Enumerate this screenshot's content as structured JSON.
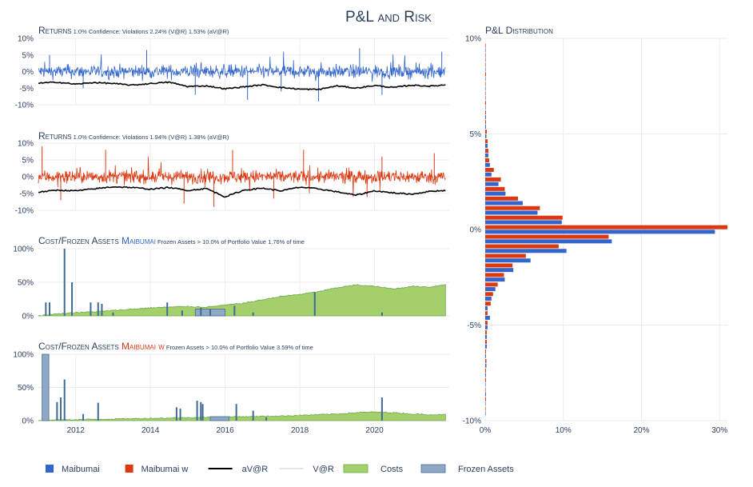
{
  "title": "P&L and Risk",
  "colors": {
    "blue": "#3366cc",
    "red": "#dc3912",
    "black": "#000000",
    "var_line": "#cccccc",
    "costs_fill": "#a5cf6b",
    "costs_line": "#6aa84f",
    "frozen_fill": "#8fa9c4",
    "frozen_line": "#3f6a96",
    "grid": "#ebebeb"
  },
  "chart_data": [
    {
      "id": "returns1",
      "type": "line",
      "title_main": "Returns",
      "title_sub": "1.0% Confidence: Violations 2.24% (V@R) 1.53% (aV@R)",
      "series_color": "blue",
      "ylim": [
        -10,
        10
      ],
      "yticks": [
        "10%",
        "5%",
        "0%",
        "-5%",
        "-10%"
      ],
      "ytick_values": [
        10,
        5,
        0,
        -5,
        -10
      ],
      "avar_points": [
        [
          2011,
          -3.5
        ],
        [
          2011.5,
          -3.2
        ],
        [
          2012,
          -3.8
        ],
        [
          2012.5,
          -3.3
        ],
        [
          2013,
          -3.6
        ],
        [
          2013.5,
          -4.1
        ],
        [
          2014,
          -3.6
        ],
        [
          2014.5,
          -3.2
        ],
        [
          2015,
          -4.5
        ],
        [
          2015.5,
          -4.3
        ],
        [
          2016,
          -5.2
        ],
        [
          2016.5,
          -4.6
        ],
        [
          2017,
          -4.0
        ],
        [
          2017.5,
          -4.8
        ],
        [
          2018,
          -5.3
        ],
        [
          2018.5,
          -5.4
        ],
        [
          2019,
          -4.3
        ],
        [
          2019.5,
          -5.0
        ],
        [
          2020,
          -4.2
        ],
        [
          2020.5,
          -4.8
        ],
        [
          2021,
          -4.1
        ],
        [
          2021.5,
          -4.4
        ],
        [
          2021.9,
          -4.0
        ]
      ],
      "spikes": [
        [
          2011.3,
          5
        ],
        [
          2012.2,
          -5
        ],
        [
          2013.9,
          6.5
        ],
        [
          2015.2,
          -7
        ],
        [
          2016.6,
          -8.5
        ],
        [
          2017.5,
          -6
        ],
        [
          2018.5,
          -9
        ],
        [
          2019.6,
          7
        ],
        [
          2020.2,
          -7
        ],
        [
          2021.8,
          6
        ]
      ]
    },
    {
      "id": "returns2",
      "type": "line",
      "title_main": "Returns",
      "title_sub": "1.0% Confidence: Violations 1.94% (V@R) 1.38% (aV@R)",
      "series_color": "red",
      "ylim": [
        -10,
        10
      ],
      "yticks": [
        "10%",
        "5%",
        "0%",
        "-5%",
        "-10%"
      ],
      "ytick_values": [
        10,
        5,
        0,
        -5,
        -10
      ],
      "avar_points": [
        [
          2011,
          -4.6
        ],
        [
          2011.5,
          -4.0
        ],
        [
          2012,
          -4.2
        ],
        [
          2012.5,
          -3.6
        ],
        [
          2013,
          -3.0
        ],
        [
          2013.5,
          -3.2
        ],
        [
          2014,
          -3.7
        ],
        [
          2014.5,
          -3.2
        ],
        [
          2015,
          -4.1
        ],
        [
          2015.5,
          -3.5
        ],
        [
          2016,
          -6.0
        ],
        [
          2016.5,
          -4.0
        ],
        [
          2017,
          -3.4
        ],
        [
          2017.5,
          -4.2
        ],
        [
          2018,
          -3.1
        ],
        [
          2018.5,
          -3.6
        ],
        [
          2019,
          -4.5
        ],
        [
          2019.5,
          -5.5
        ],
        [
          2020,
          -4.2
        ],
        [
          2020.5,
          -4.8
        ],
        [
          2021,
          -5.2
        ],
        [
          2021.5,
          -4.3
        ],
        [
          2021.9,
          -4.1
        ]
      ],
      "spikes": [
        [
          2011.1,
          9
        ],
        [
          2011.6,
          -7
        ],
        [
          2012.8,
          8
        ],
        [
          2014.9,
          -8
        ],
        [
          2015.7,
          -9
        ],
        [
          2016.2,
          8
        ],
        [
          2017.3,
          -6.5
        ],
        [
          2018.1,
          8
        ],
        [
          2019.8,
          -6
        ],
        [
          2020.2,
          6
        ],
        [
          2021.6,
          7
        ]
      ]
    },
    {
      "id": "cost1",
      "type": "area",
      "title_main": "Cost/Frozen Assets",
      "title_name": "Maibumai",
      "name_color": "blue",
      "title_sub": "Frozen Assets > 10.0% of Portfolio Value 1.76% of time",
      "ylim": [
        0,
        100
      ],
      "yticks": [
        "100%",
        "50%",
        "0%"
      ],
      "ytick_values": [
        100,
        50,
        0
      ],
      "costs": [
        [
          2011,
          0
        ],
        [
          2011.5,
          3
        ],
        [
          2012,
          5
        ],
        [
          2012.5,
          6
        ],
        [
          2013,
          8
        ],
        [
          2013.5,
          10
        ],
        [
          2014,
          12
        ],
        [
          2014.5,
          13
        ],
        [
          2015,
          14
        ],
        [
          2015.5,
          13
        ],
        [
          2016,
          16
        ],
        [
          2016.5,
          19
        ],
        [
          2017,
          24
        ],
        [
          2017.5,
          29
        ],
        [
          2018,
          32
        ],
        [
          2018.5,
          36
        ],
        [
          2019,
          42
        ],
        [
          2019.5,
          46
        ],
        [
          2020,
          44
        ],
        [
          2020.5,
          40
        ],
        [
          2021,
          44
        ],
        [
          2021.5,
          43
        ],
        [
          2021.9,
          47
        ]
      ],
      "frozen_bars": [
        [
          2011.2,
          20
        ],
        [
          2011.3,
          20
        ],
        [
          2011.7,
          100
        ],
        [
          2011.9,
          50
        ],
        [
          2012.4,
          20
        ],
        [
          2012.6,
          20
        ],
        [
          2012.7,
          18
        ],
        [
          2013.0,
          5
        ],
        [
          2014.45,
          20
        ],
        [
          2014.85,
          8
        ],
        [
          2015.35,
          12
        ],
        [
          2015.6,
          10
        ],
        [
          2016.25,
          15
        ],
        [
          2016.75,
          5
        ],
        [
          2018.4,
          35
        ],
        [
          2020.2,
          5
        ]
      ],
      "frozen_block": [
        2015.2,
        2016.0,
        10
      ]
    },
    {
      "id": "cost2",
      "type": "area",
      "title_main": "Cost/Frozen Assets",
      "title_name": "Maibumai w",
      "name_color": "red",
      "title_sub": "Frozen Assets > 10.0% of Portfolio Value 3.59% of time",
      "ylim": [
        0,
        100
      ],
      "yticks": [
        "100%",
        "50%",
        "0%"
      ],
      "ytick_values": [
        100,
        50,
        0
      ],
      "costs": [
        [
          2011,
          0
        ],
        [
          2011.5,
          1
        ],
        [
          2012,
          1.5
        ],
        [
          2012.5,
          2
        ],
        [
          2013,
          2.5
        ],
        [
          2013.5,
          3
        ],
        [
          2014,
          3.5
        ],
        [
          2014.5,
          4
        ],
        [
          2015,
          4.5
        ],
        [
          2015.5,
          5
        ],
        [
          2016,
          5.5
        ],
        [
          2016.5,
          6
        ],
        [
          2017,
          6.5
        ],
        [
          2017.5,
          7
        ],
        [
          2018,
          8
        ],
        [
          2018.5,
          9
        ],
        [
          2019,
          10
        ],
        [
          2019.5,
          12
        ],
        [
          2020,
          13
        ],
        [
          2020.5,
          12
        ],
        [
          2021,
          10
        ],
        [
          2021.5,
          9
        ],
        [
          2021.9,
          9
        ]
      ],
      "frozen_bars": [
        [
          2011.5,
          28
        ],
        [
          2011.6,
          35
        ],
        [
          2011.7,
          62
        ],
        [
          2012.2,
          10
        ],
        [
          2012.6,
          27
        ],
        [
          2014.7,
          20
        ],
        [
          2014.8,
          18
        ],
        [
          2015.25,
          30
        ],
        [
          2015.35,
          28
        ],
        [
          2015.4,
          25
        ],
        [
          2016.3,
          25
        ],
        [
          2016.75,
          15
        ],
        [
          2017.1,
          5
        ],
        [
          2020.2,
          35
        ]
      ],
      "frozen_block": [
        2011.1,
        2011.28,
        100
      ],
      "frozen_block2": [
        2015.6,
        2016.1,
        6
      ]
    }
  ],
  "x_axis": {
    "range": [
      2011,
      2022
    ],
    "ticks": [
      "2012",
      "2014",
      "2016",
      "2018",
      "2020"
    ],
    "tick_values": [
      2012,
      2014,
      2016,
      2018,
      2020
    ]
  },
  "distribution": {
    "title": "P&L Distribution",
    "type": "bar",
    "orientation": "horizontal",
    "yticks": [
      "10%",
      "5%",
      "0%",
      "-5%",
      "-10%"
    ],
    "ytick_values": [
      10,
      5,
      0,
      -5,
      -10
    ],
    "xticks": [
      "0%",
      "10%",
      "20%",
      "30%"
    ],
    "xtick_values": [
      0,
      10,
      20,
      30
    ],
    "xlim": [
      0,
      31
    ],
    "bins": [
      -9.5,
      -9.0,
      -8.5,
      -8.0,
      -7.5,
      -7.0,
      -6.5,
      -6.0,
      -5.5,
      -5.0,
      -4.5,
      -4.0,
      -3.5,
      -3.0,
      -2.5,
      -2.0,
      -1.5,
      -1.0,
      -0.5,
      0.0,
      0.5,
      1.0,
      1.5,
      2.0,
      2.5,
      3.0,
      3.5,
      4.0,
      4.5,
      5.0,
      5.5,
      6.0,
      6.5,
      7.0,
      7.5,
      8.0,
      8.5,
      9.0,
      9.5
    ],
    "series": [
      {
        "name": "Maibumai",
        "color": "blue",
        "values": [
          0.05,
          0,
          0.1,
          0.05,
          0.1,
          0.15,
          0.1,
          0.2,
          0.2,
          0.3,
          0.6,
          0.3,
          0.8,
          1.3,
          2.5,
          3.6,
          5.8,
          10.4,
          16.2,
          29.4,
          9.8,
          6.7,
          4.8,
          2.6,
          1.7,
          0.8,
          0.6,
          0.4,
          0.3,
          0.15,
          0.1,
          0.1,
          0.05,
          0.05,
          0.05,
          0.05,
          0.05,
          0,
          0.05
        ]
      },
      {
        "name": "Maibumai w",
        "color": "red",
        "values": [
          0.05,
          0.1,
          0.05,
          0.1,
          0.1,
          0.15,
          0.1,
          0.2,
          0.2,
          0.3,
          0.3,
          0.7,
          1.0,
          1.6,
          2.4,
          3.5,
          5.2,
          9.4,
          15.8,
          31.0,
          9.9,
          7.0,
          4.2,
          2.5,
          2.0,
          1.1,
          0.5,
          0.4,
          0.3,
          0.2,
          0.1,
          0.1,
          0.1,
          0.05,
          0.05,
          0.1,
          0.05,
          0.05,
          0.05
        ]
      }
    ]
  },
  "legend": [
    {
      "label": "Maibumai",
      "kind": "square",
      "color": "blue"
    },
    {
      "label": "Maibumai w",
      "kind": "square",
      "color": "red"
    },
    {
      "label": "aV@R",
      "kind": "line",
      "color": "black"
    },
    {
      "label": "V@R",
      "kind": "line",
      "color": "var_line"
    },
    {
      "label": "Costs",
      "kind": "fill",
      "color": "costs_fill"
    },
    {
      "label": "Frozen Assets",
      "kind": "fill",
      "color": "frozen_fill"
    }
  ]
}
